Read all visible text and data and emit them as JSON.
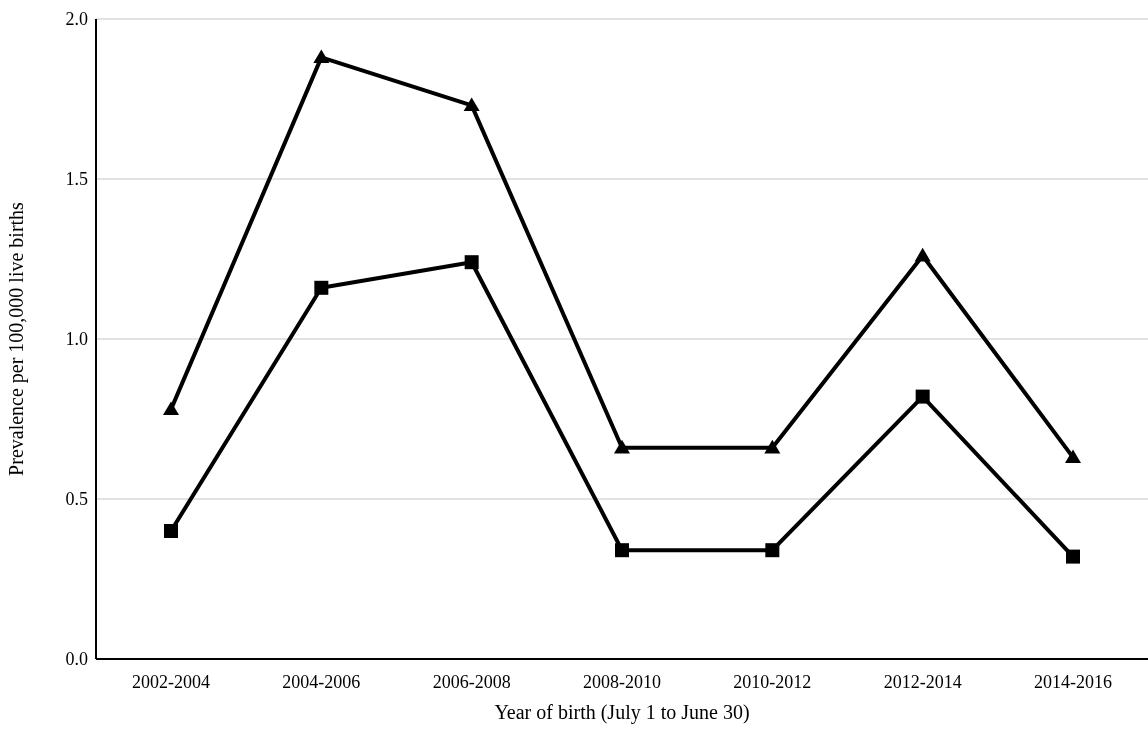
{
  "chart_data": {
    "type": "line",
    "xlabel": "Year of birth (July 1 to June 30)",
    "ylabel": "Prevalence per 100,000 live births",
    "categories": [
      "2002-2004",
      "2004-2006",
      "2006-2008",
      "2008-2010",
      "2010-2012",
      "2012-2014",
      "2014-2016"
    ],
    "series": [
      {
        "color": "#000000",
        "marker": "triangle",
        "values": [
          0.78,
          1.88,
          1.73,
          0.66,
          0.66,
          1.26,
          0.63
        ]
      },
      {
        "color": "#000000",
        "marker": "square",
        "values": [
          0.4,
          1.16,
          1.24,
          0.34,
          0.34,
          0.82,
          0.32
        ]
      }
    ],
    "ylim": [
      0,
      2
    ],
    "yticks": [
      {
        "value": 0,
        "label": "0.0"
      },
      {
        "value": 0.5,
        "label": "0.5"
      },
      {
        "value": 1,
        "label": "1.0"
      },
      {
        "value": 1.5,
        "label": "1.5"
      },
      {
        "value": 2,
        "label": "2.0"
      }
    ],
    "grid": "y",
    "legend": false,
    "line_style": "solid"
  }
}
